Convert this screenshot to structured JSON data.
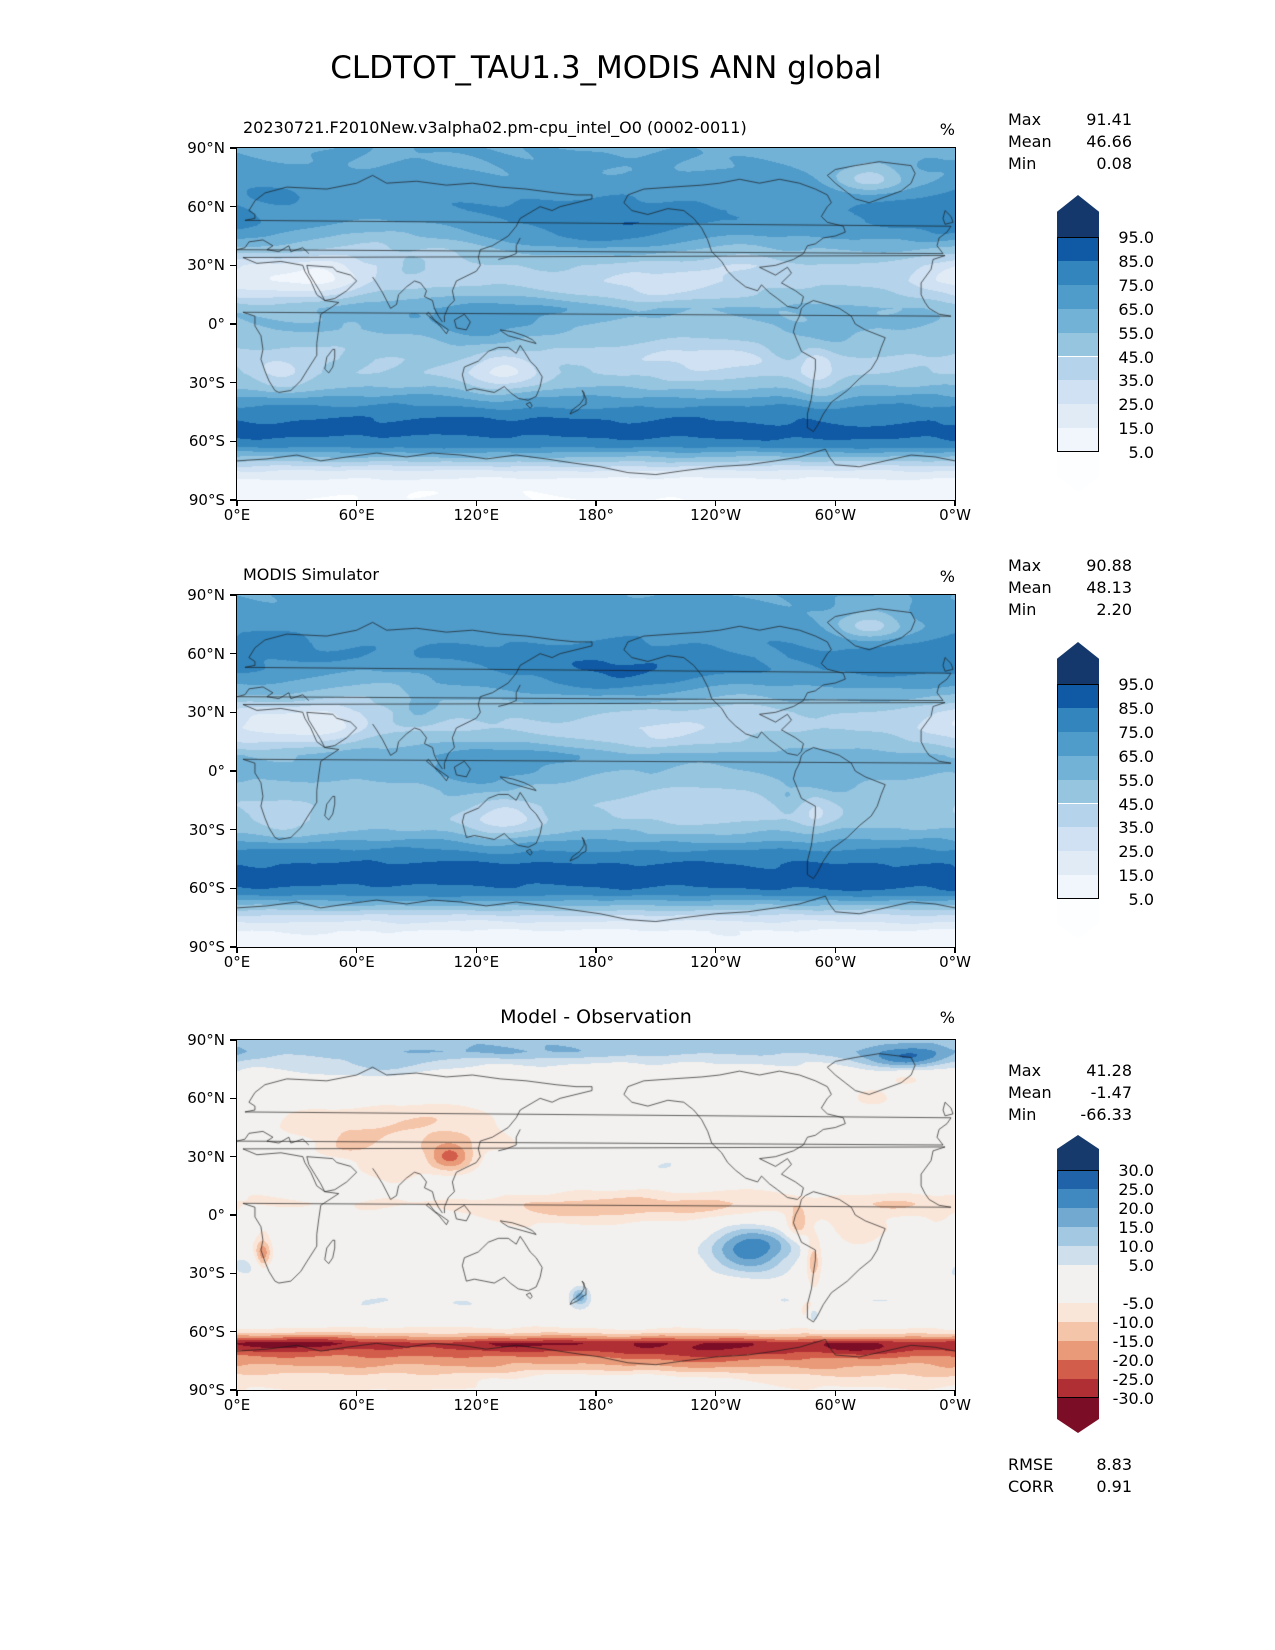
{
  "figure": {
    "title": "CLDTOT_TAU1.3_MODIS ANN global"
  },
  "axis": {
    "x_tick_labels": [
      "0°E",
      "60°E",
      "120°E",
      "180°",
      "120°W",
      "60°W",
      "0°W"
    ],
    "y_tick_labels": [
      "90°N",
      "60°N",
      "30°N",
      "0°",
      "30°S",
      "60°S",
      "90°S"
    ]
  },
  "panels": [
    {
      "title": "20230721.F2010New.v3alpha02.pm-cpu_intel_O0 (0002-0011)",
      "unit": "%",
      "stats": [
        {
          "label": "Max",
          "value": "91.41"
        },
        {
          "label": "Mean",
          "value": "46.66"
        },
        {
          "label": "Min",
          "value": "0.08"
        }
      ],
      "colorbar": {
        "tick_labels": [
          "95.0",
          "85.0",
          "75.0",
          "65.0",
          "55.0",
          "45.0",
          "35.0",
          "25.0",
          "15.0",
          "5.0"
        ]
      }
    },
    {
      "title": "MODIS Simulator",
      "unit": "%",
      "stats": [
        {
          "label": "Max",
          "value": "90.88"
        },
        {
          "label": "Mean",
          "value": "48.13"
        },
        {
          "label": "Min",
          "value": "2.20"
        }
      ],
      "colorbar": {
        "tick_labels": [
          "95.0",
          "85.0",
          "75.0",
          "65.0",
          "55.0",
          "45.0",
          "35.0",
          "25.0",
          "15.0",
          "5.0"
        ]
      }
    },
    {
      "title": "Model - Observation",
      "unit": "%",
      "stats": [
        {
          "label": "Max",
          "value": "41.28"
        },
        {
          "label": "Mean",
          "value": "-1.47"
        },
        {
          "label": "Min",
          "value": "-66.33"
        }
      ],
      "extra_stats": [
        {
          "label": "RMSE",
          "value": "8.83"
        },
        {
          "label": "CORR",
          "value": "0.91"
        }
      ],
      "colorbar": {
        "tick_labels": [
          "30.0",
          "25.0",
          "20.0",
          "15.0",
          "10.0",
          "5.0",
          "-5.0",
          "-10.0",
          "-15.0",
          "-20.0",
          "-25.0",
          "-30.0"
        ]
      }
    }
  ],
  "chart_data": [
    {
      "type": "heatmap",
      "panel": "model",
      "title": "20230721.F2010New.v3alpha02.pm-cpu_intel_O0 (0002-0011)",
      "units": "%",
      "projection": "global lat-lon",
      "x_range_deg_east": [
        0,
        360
      ],
      "y_range_deg_north": [
        -90,
        90
      ],
      "x_tick_values": [
        0,
        60,
        120,
        180,
        240,
        300,
        360
      ],
      "y_tick_values": [
        90,
        60,
        30,
        0,
        -30,
        -60,
        -90
      ],
      "stats": {
        "max": 91.41,
        "mean": 46.66,
        "min": 0.08
      },
      "levels": [
        5,
        15,
        25,
        35,
        45,
        55,
        65,
        75,
        85,
        95
      ],
      "extend": "both",
      "colors": [
        "#fdfeff",
        "#f1f6fc",
        "#e0ebf6",
        "#cfe1f2",
        "#b5d3ea",
        "#96c5df",
        "#73b2d7",
        "#4f9bca",
        "#3285bd",
        "#1059a5",
        "#14386b"
      ],
      "approx_zonal_mean": [
        [
          -90,
          6
        ],
        [
          -82,
          8
        ],
        [
          -75,
          25
        ],
        [
          -68,
          55
        ],
        [
          -62,
          80
        ],
        [
          -55,
          89
        ],
        [
          -48,
          84
        ],
        [
          -40,
          72
        ],
        [
          -32,
          55
        ],
        [
          -25,
          46
        ],
        [
          -18,
          44
        ],
        [
          -10,
          48
        ],
        [
          -3,
          54
        ],
        [
          3,
          56
        ],
        [
          8,
          58
        ],
        [
          15,
          48
        ],
        [
          22,
          42
        ],
        [
          30,
          44
        ],
        [
          38,
          56
        ],
        [
          45,
          66
        ],
        [
          52,
          72
        ],
        [
          58,
          74
        ],
        [
          65,
          72
        ],
        [
          72,
          68
        ],
        [
          80,
          66
        ],
        [
          90,
          64
        ]
      ],
      "approx_anomaly_blobs": [
        [
          48,
          185,
          10,
          30,
          14
        ],
        [
          57,
          332,
          7,
          18,
          8
        ],
        [
          68,
          20,
          5,
          15,
          6
        ],
        [
          23,
          12,
          9,
          22,
          -26
        ],
        [
          25,
          45,
          7,
          13,
          -22
        ],
        [
          42,
          70,
          9,
          22,
          -15
        ],
        [
          38,
          105,
          7,
          12,
          -8
        ],
        [
          30,
          88,
          4,
          7,
          9
        ],
        [
          -2,
          122,
          10,
          20,
          16
        ],
        [
          7,
          150,
          5,
          25,
          6
        ],
        [
          20,
          212,
          8,
          26,
          -14
        ],
        [
          -18,
          235,
          9,
          30,
          -13
        ],
        [
          -25,
          133,
          8,
          13,
          -25
        ],
        [
          -26,
          22,
          7,
          11,
          -14
        ],
        [
          -22,
          290,
          6,
          6,
          -16
        ],
        [
          -33,
          295,
          6,
          8,
          -10
        ],
        [
          -5,
          299,
          6,
          10,
          8
        ],
        [
          -14,
          276,
          6,
          7,
          9
        ],
        [
          74,
          318,
          6,
          13,
          -26
        ],
        [
          33,
          252,
          7,
          14,
          -8
        ],
        [
          5,
          80,
          5,
          12,
          6
        ],
        [
          48,
          355,
          5,
          12,
          6
        ]
      ]
    },
    {
      "type": "heatmap",
      "panel": "observation",
      "title": "MODIS Simulator",
      "units": "%",
      "projection": "global lat-lon",
      "x_range_deg_east": [
        0,
        360
      ],
      "y_range_deg_north": [
        -90,
        90
      ],
      "x_tick_values": [
        0,
        60,
        120,
        180,
        240,
        300,
        360
      ],
      "y_tick_values": [
        90,
        60,
        30,
        0,
        -30,
        -60,
        -90
      ],
      "stats": {
        "max": 90.88,
        "mean": 48.13,
        "min": 2.2
      },
      "levels": [
        5,
        15,
        25,
        35,
        45,
        55,
        65,
        75,
        85,
        95
      ],
      "extend": "both",
      "colors": [
        "#fdfeff",
        "#f1f6fc",
        "#e0ebf6",
        "#cfe1f2",
        "#b5d3ea",
        "#96c5df",
        "#73b2d7",
        "#4f9bca",
        "#3285bd",
        "#1059a5",
        "#14386b"
      ],
      "approx_zonal_mean": [
        [
          -90,
          10
        ],
        [
          -82,
          14
        ],
        [
          -75,
          30
        ],
        [
          -68,
          58
        ],
        [
          -62,
          82
        ],
        [
          -55,
          90
        ],
        [
          -48,
          86
        ],
        [
          -40,
          75
        ],
        [
          -32,
          58
        ],
        [
          -25,
          49
        ],
        [
          -18,
          47
        ],
        [
          -10,
          50
        ],
        [
          -3,
          56
        ],
        [
          3,
          58
        ],
        [
          8,
          60
        ],
        [
          15,
          50
        ],
        [
          22,
          44
        ],
        [
          30,
          46
        ],
        [
          38,
          58
        ],
        [
          45,
          68
        ],
        [
          52,
          74
        ],
        [
          58,
          76
        ],
        [
          65,
          74
        ],
        [
          72,
          70
        ],
        [
          80,
          68
        ],
        [
          90,
          66
        ]
      ],
      "approx_anomaly_blobs": [
        [
          48,
          188,
          10,
          30,
          13
        ],
        [
          57,
          332,
          7,
          18,
          8
        ],
        [
          23,
          12,
          9,
          22,
          -23
        ],
        [
          25,
          45,
          7,
          13,
          -19
        ],
        [
          42,
          70,
          9,
          22,
          -13
        ],
        [
          31,
          90,
          5,
          9,
          13
        ],
        [
          -2,
          122,
          10,
          20,
          14
        ],
        [
          20,
          212,
          8,
          26,
          -13
        ],
        [
          -18,
          235,
          9,
          30,
          -12
        ],
        [
          -25,
          133,
          8,
          13,
          -21
        ],
        [
          -26,
          22,
          7,
          11,
          -12
        ],
        [
          -22,
          290,
          6,
          6,
          -14
        ],
        [
          -5,
          299,
          6,
          10,
          8
        ],
        [
          -14,
          276,
          6,
          7,
          9
        ],
        [
          74,
          318,
          6,
          13,
          -28
        ],
        [
          33,
          252,
          7,
          14,
          -7
        ],
        [
          68,
          20,
          5,
          15,
          6
        ],
        [
          7,
          150,
          5,
          25,
          6
        ]
      ]
    },
    {
      "type": "heatmap",
      "panel": "difference",
      "title": "Model - Observation",
      "units": "%",
      "projection": "global lat-lon",
      "x_range_deg_east": [
        0,
        360
      ],
      "y_range_deg_north": [
        -90,
        90
      ],
      "x_tick_values": [
        0,
        60,
        120,
        180,
        240,
        300,
        360
      ],
      "y_tick_values": [
        90,
        60,
        30,
        0,
        -30,
        -60,
        -90
      ],
      "stats": {
        "max": 41.28,
        "mean": -1.47,
        "min": -66.33,
        "rmse": 8.83,
        "corr": 0.91
      },
      "levels": [
        -30,
        -25,
        -20,
        -15,
        -10,
        -5,
        5,
        10,
        15,
        20,
        25,
        30
      ],
      "extend": "both",
      "colors": [
        "#7c0d26",
        "#b02f35",
        "#d35d4b",
        "#e89a79",
        "#f5c5a9",
        "#fae6d9",
        "#f2f1ef",
        "#cfdfec",
        "#a3c8e1",
        "#72a9d1",
        "#3f88c0",
        "#2063a8",
        "#153a6b"
      ],
      "approx_zonal_mean": [
        [
          -90,
          -5
        ],
        [
          -84,
          -8
        ],
        [
          -79,
          -14
        ],
        [
          -74,
          -18
        ],
        [
          -69,
          -24
        ],
        [
          -66,
          -26
        ],
        [
          -63,
          -16
        ],
        [
          -60,
          -7
        ],
        [
          -56,
          -2
        ],
        [
          -50,
          3
        ],
        [
          -44,
          4
        ],
        [
          -37,
          2
        ],
        [
          -30,
          1
        ],
        [
          -24,
          0
        ],
        [
          -16,
          -1
        ],
        [
          -8,
          -3
        ],
        [
          0,
          -3
        ],
        [
          6,
          -5
        ],
        [
          12,
          -3
        ],
        [
          18,
          -1
        ],
        [
          26,
          -2
        ],
        [
          34,
          -3
        ],
        [
          42,
          -3
        ],
        [
          50,
          -2
        ],
        [
          58,
          -1
        ],
        [
          65,
          0
        ],
        [
          71,
          2
        ],
        [
          76,
          4
        ],
        [
          80,
          7
        ],
        [
          84,
          12
        ],
        [
          88,
          13
        ],
        [
          90,
          12
        ]
      ],
      "approx_anomaly_blobs": [
        [
          81,
          335,
          4,
          16,
          16
        ],
        [
          83,
          120,
          3,
          40,
          4
        ],
        [
          76,
          70,
          4,
          22,
          6
        ],
        [
          45,
          95,
          10,
          26,
          -8
        ],
        [
          30,
          107,
          5,
          8,
          -18
        ],
        [
          22,
          77,
          5,
          9,
          -6
        ],
        [
          36,
          58,
          6,
          11,
          -7
        ],
        [
          50,
          40,
          6,
          15,
          -5
        ],
        [
          5,
          210,
          5,
          45,
          -8
        ],
        [
          4,
          335,
          4,
          16,
          -6
        ],
        [
          2,
          160,
          4,
          20,
          -5
        ],
        [
          -17,
          258,
          8,
          15,
          26
        ],
        [
          25,
          218,
          7,
          16,
          6
        ],
        [
          -24,
          289,
          9,
          3,
          -15
        ],
        [
          -5,
          281,
          5,
          4,
          -13
        ],
        [
          -20,
          13,
          6,
          3,
          -17
        ],
        [
          -26,
          4,
          5,
          7,
          5
        ],
        [
          -10,
          312,
          6,
          9,
          -7
        ],
        [
          -34,
          302,
          5,
          6,
          -6
        ],
        [
          -48,
          287,
          4,
          4,
          -14
        ],
        [
          -51,
          289,
          3,
          2,
          16
        ],
        [
          -42,
          172,
          3,
          3,
          16
        ],
        [
          -66,
          30,
          3,
          25,
          -7
        ],
        [
          -67,
          145,
          3,
          25,
          -6
        ],
        [
          -70,
          230,
          4,
          30,
          -7
        ],
        [
          -68,
          310,
          3,
          15,
          -7
        ],
        [
          -84,
          180,
          4,
          40,
          7
        ],
        [
          62,
          318,
          4,
          8,
          -7
        ],
        [
          57,
          205,
          4,
          9,
          5
        ],
        [
          47,
          312,
          5,
          10,
          5
        ],
        [
          70,
          335,
          3,
          8,
          -8
        ]
      ]
    }
  ]
}
